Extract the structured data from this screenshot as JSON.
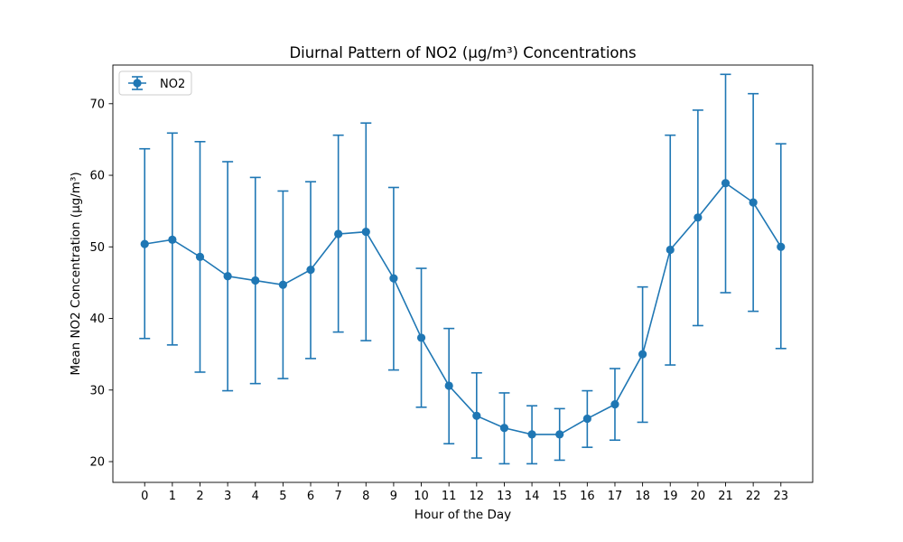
{
  "chart_data": {
    "type": "line",
    "title": "Diurnal Pattern of NO2 (µg/m³) Concentrations",
    "xlabel": "Hour of the Day",
    "ylabel": "Mean NO2 Concentration (µg/m³)",
    "x": [
      0,
      1,
      2,
      3,
      4,
      5,
      6,
      7,
      8,
      9,
      10,
      11,
      12,
      13,
      14,
      15,
      16,
      17,
      18,
      19,
      20,
      21,
      22,
      23
    ],
    "xlim": [
      -1.15,
      24.15
    ],
    "ylim": [
      17.1,
      75.4
    ],
    "yticks": [
      20,
      30,
      40,
      50,
      60,
      70
    ],
    "grid": false,
    "legend_position": "top-left",
    "series": [
      {
        "name": "NO2",
        "color": "#1f77b4",
        "marker": "circle",
        "error_bars": true,
        "values": [
          50.4,
          51.0,
          48.6,
          45.9,
          45.3,
          44.7,
          46.8,
          51.8,
          52.1,
          45.6,
          37.3,
          30.6,
          26.4,
          24.7,
          23.8,
          23.8,
          26.0,
          28.0,
          35.0,
          49.6,
          54.1,
          58.9,
          56.2,
          50.0
        ],
        "error_lower": [
          37.2,
          36.3,
          32.5,
          29.9,
          30.9,
          31.6,
          34.4,
          38.1,
          36.9,
          32.8,
          27.6,
          22.5,
          20.5,
          19.7,
          19.7,
          20.2,
          22.0,
          23.0,
          25.5,
          33.5,
          39.0,
          43.6,
          41.0,
          35.8
        ],
        "error_upper": [
          63.7,
          65.9,
          64.7,
          61.9,
          59.7,
          57.8,
          59.1,
          65.6,
          67.3,
          58.3,
          47.0,
          38.6,
          32.4,
          29.6,
          27.8,
          27.4,
          29.9,
          33.0,
          44.4,
          65.6,
          69.1,
          74.1,
          71.4,
          64.4
        ]
      }
    ]
  }
}
